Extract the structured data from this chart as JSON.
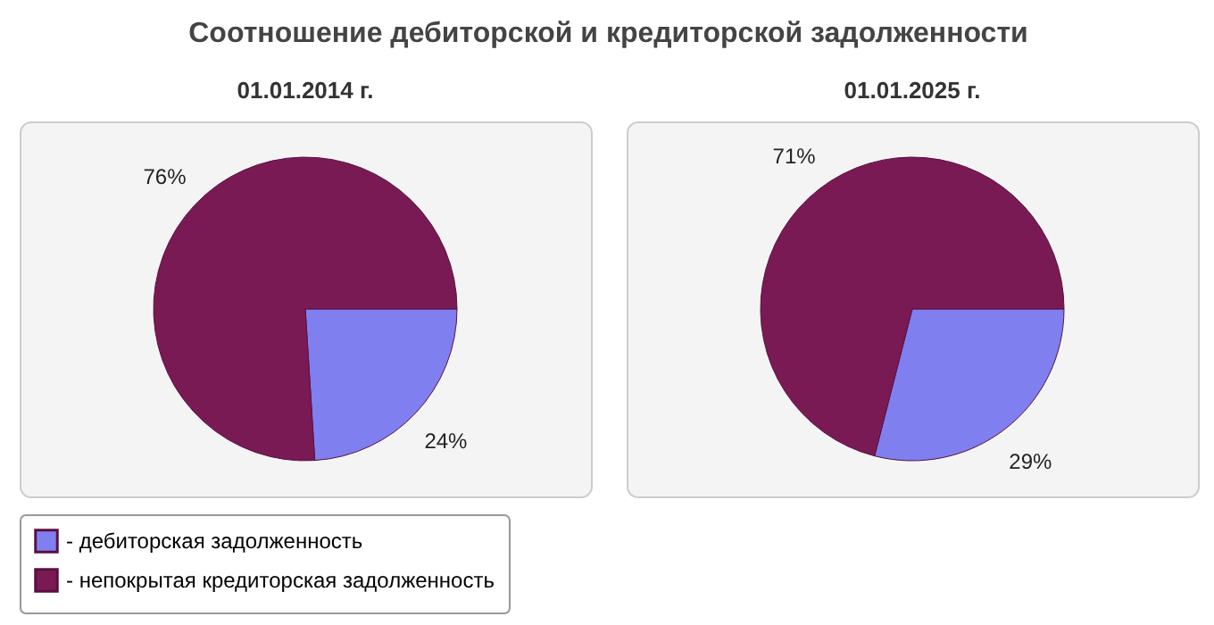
{
  "chart_data": [
    {
      "type": "pie",
      "title": "Соотношение дебиторской и кредиторской задолженности",
      "subtitle": "01.01.2014 г.",
      "categories": [
        "- дебиторская задолженность",
        "- непокрытая кредиторская задолженность"
      ],
      "values": [
        24,
        76
      ],
      "value_labels": [
        "24%",
        "76%"
      ],
      "colors": [
        "#7f7fef",
        "#7a1a55"
      ],
      "legend": "bottom"
    },
    {
      "type": "pie",
      "subtitle": "01.01.2025 г.",
      "categories": [
        null,
        null
      ],
      "values": [
        29,
        71
      ],
      "value_labels": [
        "29%",
        "71%"
      ],
      "colors": [
        "#7f7fef",
        "#7a1a55"
      ]
    }
  ]
}
